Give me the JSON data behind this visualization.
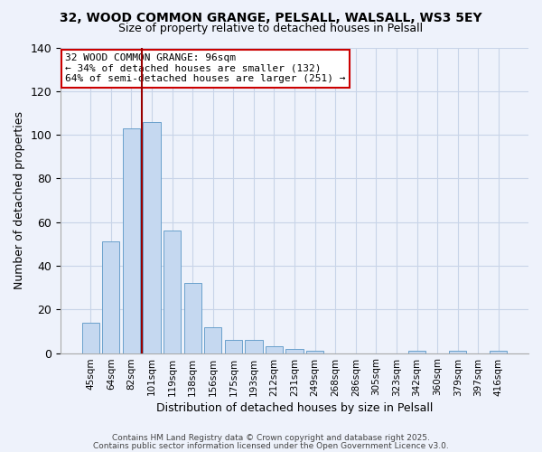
{
  "title1": "32, WOOD COMMON GRANGE, PELSALL, WALSALL, WS3 5EY",
  "title2": "Size of property relative to detached houses in Pelsall",
  "xlabel": "Distribution of detached houses by size in Pelsall",
  "ylabel": "Number of detached properties",
  "categories": [
    "45sqm",
    "64sqm",
    "82sqm",
    "101sqm",
    "119sqm",
    "138sqm",
    "156sqm",
    "175sqm",
    "193sqm",
    "212sqm",
    "231sqm",
    "249sqm",
    "268sqm",
    "286sqm",
    "305sqm",
    "323sqm",
    "342sqm",
    "360sqm",
    "379sqm",
    "397sqm",
    "416sqm"
  ],
  "values": [
    14,
    51,
    103,
    106,
    56,
    32,
    12,
    6,
    6,
    3,
    2,
    1,
    0,
    0,
    0,
    0,
    1,
    0,
    1,
    0,
    1
  ],
  "bar_color": "#c5d8f0",
  "bar_edge_color": "#6aa0cc",
  "vline_color": "#990000",
  "ylim": [
    0,
    140
  ],
  "yticks": [
    0,
    20,
    40,
    60,
    80,
    100,
    120,
    140
  ],
  "annotation_title": "32 WOOD COMMON GRANGE: 96sqm",
  "annotation_line1": "← 34% of detached houses are smaller (132)",
  "annotation_line2": "64% of semi-detached houses are larger (251) →",
  "annotation_box_color": "#ffffff",
  "annotation_box_edge": "#cc0000",
  "footer1": "Contains HM Land Registry data © Crown copyright and database right 2025.",
  "footer2": "Contains public sector information licensed under the Open Government Licence v3.0.",
  "background_color": "#eef2fb",
  "grid_color": "#c8d4e8",
  "title1_fontsize": 10,
  "title2_fontsize": 9
}
